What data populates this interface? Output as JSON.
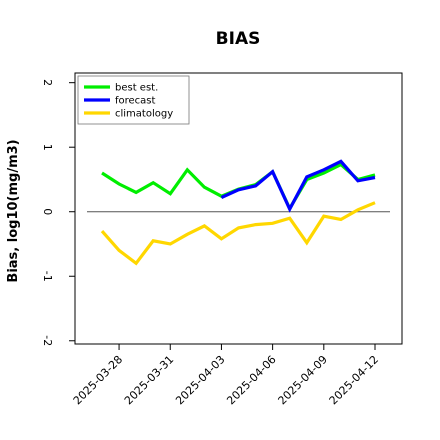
{
  "chart_data": {
    "type": "line",
    "title": "BIAS",
    "xlabel": "",
    "ylabel": "Bias, log10(mg/m3)",
    "ylim": [
      -2.05,
      2.15
    ],
    "yticks": [
      -2,
      -1,
      0,
      1,
      2
    ],
    "ytick_labels": [
      "-2",
      "-1",
      "0",
      "1",
      "2"
    ],
    "xtick_labels": [
      "2025-03-28",
      "2025-03-31",
      "2025-04-03",
      "2025-04-06",
      "2025-04-09",
      "2025-04-12"
    ],
    "highlight_tick": "2025-04-03",
    "highlight_color": "#228b22",
    "reference_line": 0,
    "legend_position": "top-left",
    "x": [
      "2025-03-27",
      "2025-03-28",
      "2025-03-29",
      "2025-03-30",
      "2025-03-31",
      "2025-04-01",
      "2025-04-02",
      "2025-04-03",
      "2025-04-04",
      "2025-04-05",
      "2025-04-06",
      "2025-04-07",
      "2025-04-08",
      "2025-04-09",
      "2025-04-10",
      "2025-04-11",
      "2025-04-12"
    ],
    "series": [
      {
        "name": "best est.",
        "color": "#00ee00",
        "values": [
          0.6,
          0.43,
          0.3,
          0.45,
          0.28,
          0.65,
          0.38,
          0.24,
          0.35,
          0.42,
          0.62,
          0.05,
          0.5,
          0.6,
          0.73,
          0.5,
          0.57
        ]
      },
      {
        "name": "forecast",
        "color": "#0000ff",
        "values": [
          null,
          null,
          null,
          null,
          null,
          null,
          null,
          0.22,
          0.34,
          0.4,
          0.62,
          0.04,
          0.54,
          0.65,
          0.78,
          0.48,
          0.53
        ]
      },
      {
        "name": "climatology",
        "color": "#ffd700",
        "values": [
          -0.3,
          -0.6,
          -0.8,
          -0.45,
          -0.5,
          -0.35,
          -0.22,
          -0.42,
          -0.25,
          -0.2,
          -0.18,
          -0.1,
          -0.48,
          -0.07,
          -0.12,
          0.03,
          0.14
        ]
      }
    ]
  }
}
